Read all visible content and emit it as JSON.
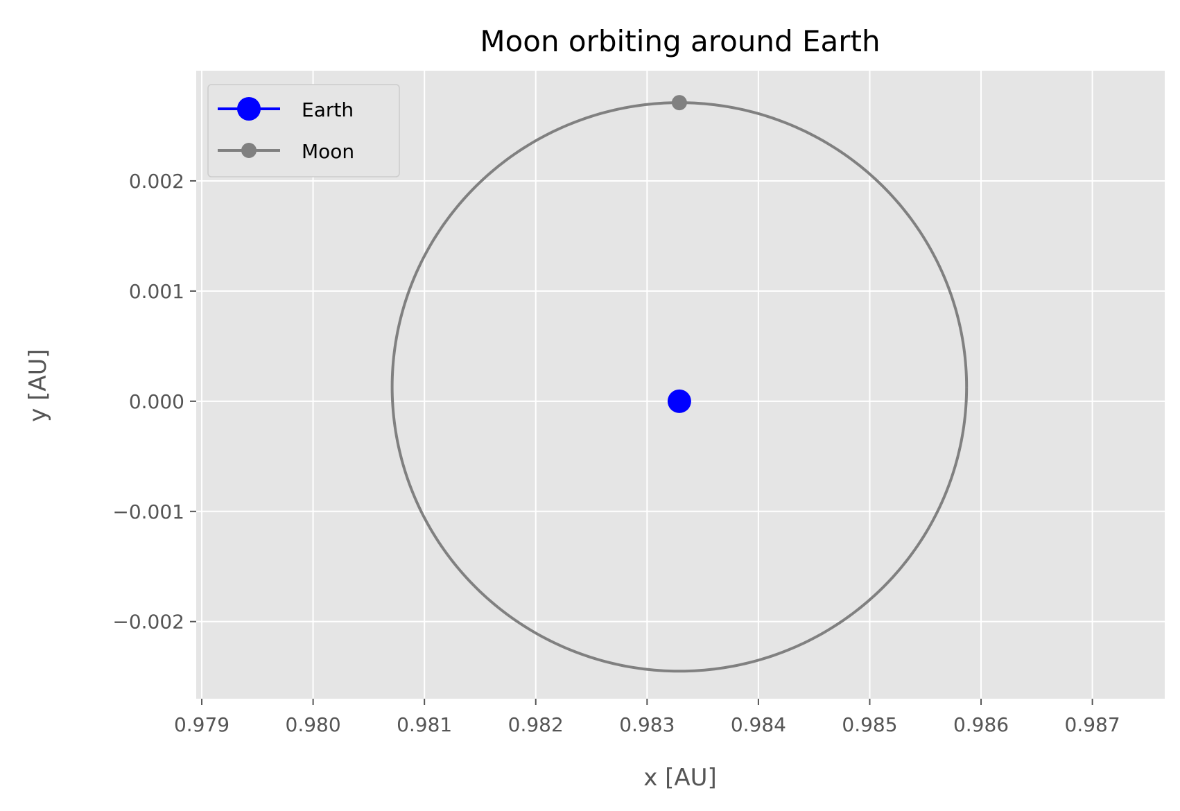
{
  "chart_data": {
    "type": "line",
    "title": "Moon orbiting around Earth",
    "xlabel": "x [AU]",
    "ylabel": "y [AU]",
    "xlim": [
      0.97895,
      0.98765
    ],
    "ylim": [
      -0.0027,
      0.003
    ],
    "xticks": [
      0.979,
      0.98,
      0.981,
      0.982,
      0.983,
      0.984,
      0.985,
      0.986,
      0.987
    ],
    "xtick_labels": [
      "0.979",
      "0.980",
      "0.981",
      "0.982",
      "0.983",
      "0.984",
      "0.985",
      "0.986",
      "0.987"
    ],
    "yticks": [
      -0.002,
      -0.001,
      0.0,
      0.001,
      0.002
    ],
    "ytick_labels": [
      "−0.002",
      "−0.001",
      "0.000",
      "0.001",
      "0.002"
    ],
    "grid": true,
    "legend_position": "top-left",
    "series": [
      {
        "name": "Earth",
        "color": "#0000ff",
        "marker": "circle-large",
        "points": [
          [
            0.98329,
            0.0
          ]
        ]
      },
      {
        "name": "Moon",
        "color": "#808080",
        "marker": "circle-small",
        "orbit": {
          "center": [
            0.98329,
            0.00013
          ],
          "radius_x": 0.00258,
          "radius_y": 0.00258
        },
        "points": [
          [
            0.98329,
            0.00271
          ]
        ]
      }
    ]
  }
}
